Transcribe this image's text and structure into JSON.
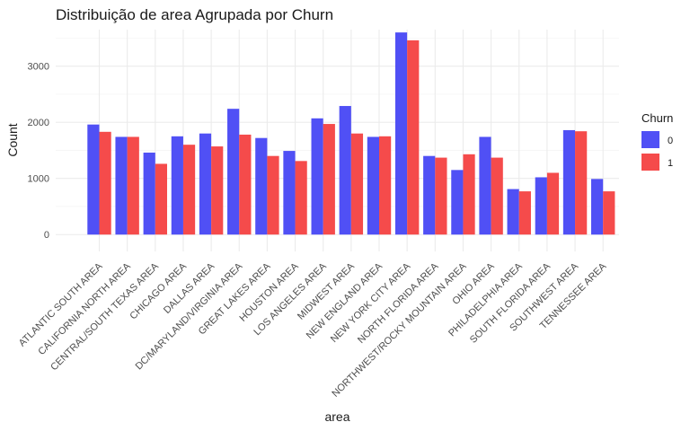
{
  "chart_data": {
    "type": "bar",
    "title": "Distribuição de area Agrupada por Churn",
    "xlabel": "area",
    "ylabel": "Count",
    "ylim": [
      -300,
      3650
    ],
    "yticks": [
      0,
      1000,
      2000,
      3000
    ],
    "grid": true,
    "legend": {
      "title": "Churn",
      "position": "right"
    },
    "categories": [
      "ATLANTIC SOUTH AREA",
      "CALIFORNIA NORTH AREA",
      "CENTRAL/SOUTH TEXAS AREA",
      "CHICAGO AREA",
      "DALLAS AREA",
      "DC/MARYLAND/VIRGINIA AREA",
      "GREAT LAKES AREA",
      "HOUSTON AREA",
      "LOS ANGELES AREA",
      "MIDWEST AREA",
      "NEW ENGLAND AREA",
      "NEW YORK CITY AREA",
      "NORTH FLORIDA AREA",
      "NORTHWEST/ROCKY MOUNTAIN AREA",
      "OHIO AREA",
      "PHILADELPHIA AREA",
      "SOUTH FLORIDA AREA",
      "SOUTHWEST AREA",
      "TENNESSEE AREA"
    ],
    "series": [
      {
        "name": "0",
        "color": "#5050F5",
        "values": [
          1960,
          1740,
          1460,
          1750,
          1800,
          2240,
          1720,
          1490,
          2070,
          2290,
          1740,
          3600,
          1400,
          1150,
          1740,
          810,
          1020,
          1860,
          990
        ]
      },
      {
        "name": "1",
        "color": "#F54B4B",
        "values": [
          1830,
          1740,
          1260,
          1600,
          1570,
          1780,
          1400,
          1310,
          1970,
          1800,
          1750,
          3460,
          1370,
          1430,
          1370,
          770,
          1100,
          1840,
          770
        ]
      }
    ]
  }
}
